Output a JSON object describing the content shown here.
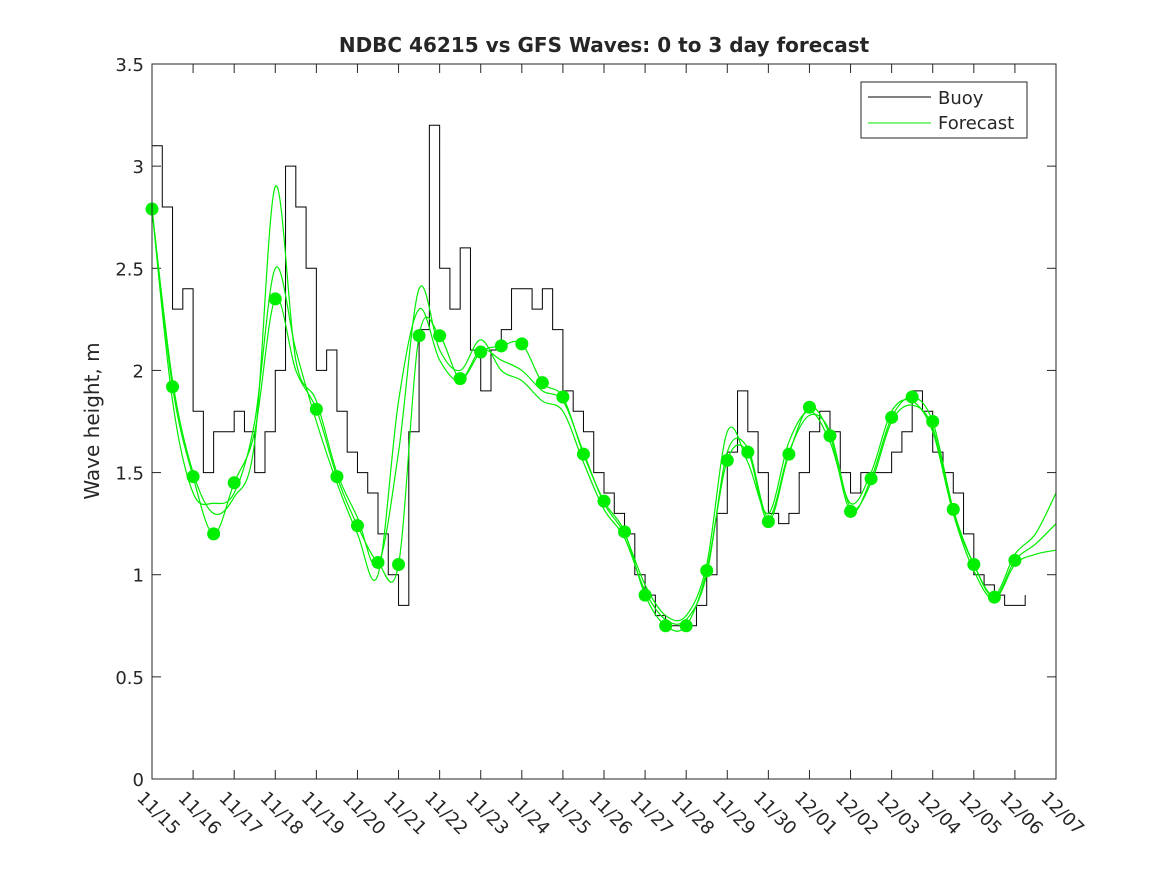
{
  "chart_data": {
    "type": "line",
    "title": "NDBC 46215 vs GFS Waves: 0 to 3 day forecast",
    "xlabel": "",
    "ylabel": "Wave height, m",
    "xlim_days": [
      0,
      22
    ],
    "ylim": [
      0,
      3.5
    ],
    "x_tick_labels": [
      "11/15",
      "11/16",
      "11/17",
      "11/18",
      "11/19",
      "11/20",
      "11/21",
      "11/22",
      "11/23",
      "11/24",
      "11/25",
      "11/26",
      "11/27",
      "11/28",
      "11/29",
      "11/30",
      "12/01",
      "12/02",
      "12/03",
      "12/04",
      "12/05",
      "12/06",
      "12/07"
    ],
    "y_ticks": [
      0,
      0.5,
      1,
      1.5,
      2,
      2.5,
      3,
      3.5
    ],
    "y_tick_labels": [
      "0",
      "0.5",
      "1",
      "1.5",
      "2",
      "2.5",
      "3",
      "3.5"
    ],
    "legend": {
      "position": "top-right",
      "entries": [
        "Buoy",
        "Forecast"
      ]
    },
    "colors": {
      "buoy": "#000000",
      "forecast": "#00ee00"
    },
    "buoy": {
      "name": "Buoy",
      "x_step_days": 0.25,
      "values": [
        3.1,
        2.8,
        2.3,
        2.4,
        1.8,
        1.5,
        1.7,
        1.7,
        1.8,
        1.7,
        1.5,
        1.7,
        2.0,
        3.0,
        2.8,
        2.5,
        2.0,
        2.1,
        1.8,
        1.6,
        1.5,
        1.4,
        1.2,
        1.0,
        0.85,
        1.7,
        2.2,
        3.2,
        2.5,
        2.3,
        2.6,
        2.1,
        1.9,
        2.1,
        2.2,
        2.4,
        2.4,
        2.3,
        2.4,
        2.2,
        1.9,
        1.8,
        1.7,
        1.5,
        1.4,
        1.3,
        1.2,
        1.0,
        0.9,
        0.8,
        0.75,
        0.75,
        0.75,
        0.85,
        1.0,
        1.3,
        1.6,
        1.9,
        1.7,
        1.5,
        1.3,
        1.25,
        1.3,
        1.5,
        1.7,
        1.8,
        1.7,
        1.5,
        1.4,
        1.5,
        1.5,
        1.5,
        1.6,
        1.7,
        1.9,
        1.8,
        1.6,
        1.5,
        1.4,
        1.2,
        1.0,
        0.95,
        0.9,
        0.85,
        0.85,
        0.9
      ]
    },
    "forecast_runs": {
      "name": "Forecast",
      "x_step_days": 0.5,
      "series": [
        [
          2.79,
          1.92,
          1.48,
          1.2,
          1.45,
          1.7,
          2.35,
          2.0,
          1.81,
          1.48,
          1.24,
          1.06,
          1.05,
          2.17,
          2.17,
          1.96,
          2.09,
          2.12,
          2.13,
          1.94,
          1.87,
          1.59,
          1.36,
          1.21,
          0.9,
          0.75,
          0.75,
          1.02,
          1.56,
          1.6,
          1.26,
          1.59,
          1.82,
          1.68,
          1.31,
          1.47,
          1.77,
          1.87,
          1.75,
          1.32,
          1.05,
          0.89,
          1.07,
          1.15,
          1.25
        ],
        [
          2.79,
          1.85,
          1.4,
          1.35,
          1.4,
          1.75,
          2.5,
          2.1,
          1.75,
          1.45,
          1.2,
          1.0,
          1.85,
          2.3,
          2.05,
          1.95,
          2.1,
          2.05,
          2.0,
          1.9,
          1.85,
          1.6,
          1.35,
          1.2,
          0.95,
          0.8,
          0.8,
          1.05,
          1.7,
          1.55,
          1.3,
          1.65,
          1.8,
          1.65,
          1.35,
          1.5,
          1.8,
          1.85,
          1.7,
          1.3,
          1.05,
          0.9,
          1.1,
          1.2,
          1.4
        ],
        [
          2.79,
          1.95,
          1.5,
          1.3,
          1.38,
          1.65,
          2.9,
          2.05,
          1.85,
          1.5,
          1.28,
          1.05,
          1.6,
          2.4,
          2.1,
          2.0,
          2.15,
          2.0,
          1.95,
          1.85,
          1.8,
          1.55,
          1.32,
          1.18,
          0.92,
          0.78,
          0.78,
          1.0,
          1.6,
          1.62,
          1.28,
          1.6,
          1.78,
          1.7,
          1.33,
          1.45,
          1.75,
          1.83,
          1.72,
          1.3,
          1.02,
          0.88,
          1.05,
          1.1,
          1.12
        ]
      ]
    },
    "analysis_points": [
      [
        0,
        2.79
      ],
      [
        0.5,
        1.92
      ],
      [
        1,
        1.48
      ],
      [
        1.5,
        1.2
      ],
      [
        2,
        1.45
      ],
      [
        3,
        2.35
      ],
      [
        4,
        1.81
      ],
      [
        4.5,
        1.48
      ],
      [
        5,
        1.24
      ],
      [
        5.5,
        1.06
      ],
      [
        6,
        1.05
      ],
      [
        6.5,
        2.17
      ],
      [
        7,
        2.17
      ],
      [
        7.5,
        1.96
      ],
      [
        8,
        2.09
      ],
      [
        8.5,
        2.12
      ],
      [
        9,
        2.13
      ],
      [
        9.5,
        1.94
      ],
      [
        10,
        1.87
      ],
      [
        10.5,
        1.59
      ],
      [
        11,
        1.36
      ],
      [
        11.5,
        1.21
      ],
      [
        12,
        0.9
      ],
      [
        12.5,
        0.75
      ],
      [
        13,
        0.75
      ],
      [
        13.5,
        1.02
      ],
      [
        14,
        1.56
      ],
      [
        14.5,
        1.6
      ],
      [
        15,
        1.26
      ],
      [
        15.5,
        1.59
      ],
      [
        16,
        1.82
      ],
      [
        16.5,
        1.68
      ],
      [
        17,
        1.31
      ],
      [
        17.5,
        1.47
      ],
      [
        18,
        1.77
      ],
      [
        18.5,
        1.87
      ],
      [
        19,
        1.75
      ],
      [
        19.5,
        1.32
      ],
      [
        20,
        1.05
      ],
      [
        20.5,
        0.89
      ],
      [
        21,
        1.07
      ]
    ]
  }
}
